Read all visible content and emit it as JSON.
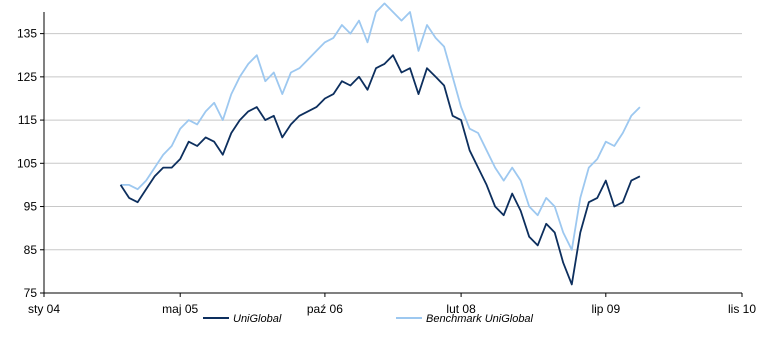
{
  "chart_data": {
    "type": "line",
    "title": "",
    "xlabel": "",
    "ylabel": "",
    "ylim": [
      75,
      140
    ],
    "yticks": [
      75,
      85,
      95,
      105,
      115,
      125,
      135
    ],
    "xticks": [
      "sty 04",
      "maj 05",
      "paź 06",
      "lut 08",
      "lip 09",
      "lis 10"
    ],
    "grid": "horizontal",
    "legend_position": "bottom",
    "x_points": [
      "paź 04",
      "lis 04",
      "gru 04",
      "sty 05",
      "lut 05",
      "mar 05",
      "kwi 05",
      "maj 05",
      "cze 05",
      "lip 05",
      "sie 05",
      "wrz 05",
      "paź 05",
      "lis 05",
      "gru 05",
      "sty 06",
      "lut 06",
      "mar 06",
      "kwi 06",
      "maj 06",
      "cze 06",
      "lip 06",
      "sie 06",
      "wrz 06",
      "paź 06",
      "lis 06",
      "gru 06",
      "sty 07",
      "lut 07",
      "mar 07",
      "kwi 07",
      "maj 07",
      "cze 07",
      "lip 07",
      "sie 07",
      "wrz 07",
      "paź 07",
      "lis 07",
      "gru 07",
      "sty 08",
      "lut 08",
      "mar 08",
      "kwi 08",
      "maj 08",
      "cze 08",
      "lip 08",
      "sie 08",
      "wrz 08",
      "paź 08",
      "lis 08",
      "gru 08",
      "sty 09",
      "lut 09",
      "mar 09",
      "kwi 09",
      "maj 09",
      "cze 09",
      "lip 09",
      "sie 09",
      "wrz 09",
      "paź 09",
      "lis 09"
    ],
    "series": [
      {
        "name": "UniGlobal",
        "color": "#0d2f5e",
        "values": [
          100,
          97,
          96,
          99,
          102,
          104,
          104,
          106,
          110,
          109,
          111,
          110,
          107,
          112,
          115,
          117,
          118,
          115,
          116,
          111,
          114,
          116,
          117,
          118,
          120,
          121,
          124,
          123,
          125,
          122,
          127,
          128,
          130,
          126,
          127,
          121,
          127,
          125,
          123,
          116,
          115,
          108,
          104,
          100,
          95,
          93,
          98,
          94,
          88,
          86,
          91,
          89,
          82,
          77,
          89,
          96,
          97,
          101,
          95,
          96,
          101,
          102
        ]
      },
      {
        "name": "Benchmark  UniGlobal",
        "color": "#9dc8f0",
        "values": [
          100,
          100,
          99,
          101,
          104,
          107,
          109,
          113,
          115,
          114,
          117,
          119,
          115,
          121,
          125,
          128,
          130,
          124,
          126,
          121,
          126,
          127,
          129,
          131,
          133,
          134,
          137,
          135,
          138,
          133,
          140,
          142,
          140,
          138,
          140,
          131,
          137,
          134,
          132,
          125,
          118,
          113,
          112,
          108,
          104,
          101,
          104,
          101,
          95,
          93,
          97,
          95,
          89,
          85,
          97,
          104,
          106,
          110,
          109,
          112,
          116,
          118
        ]
      }
    ]
  }
}
